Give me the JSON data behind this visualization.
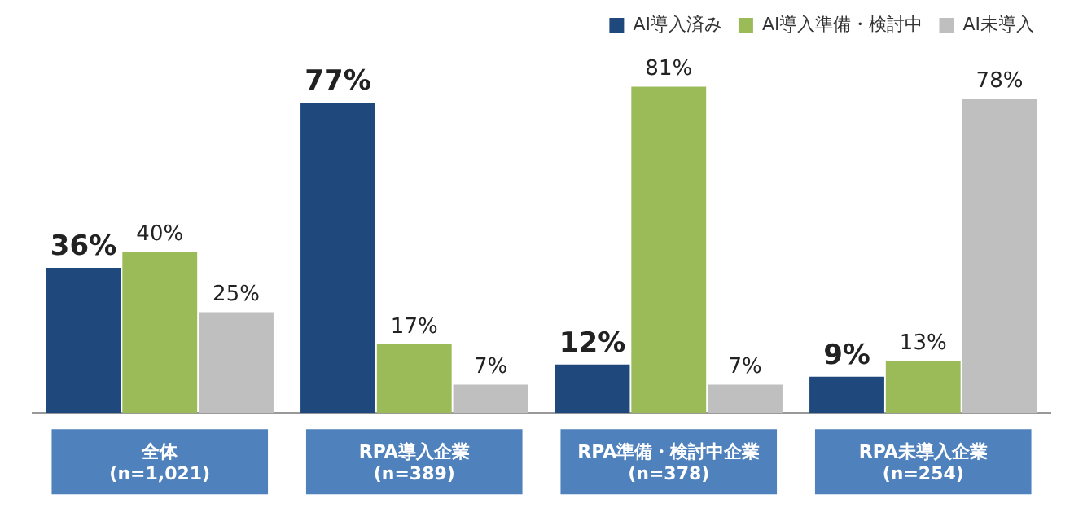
{
  "chart_data": {
    "type": "bar",
    "categories": [
      "全体\n(n=1,021)",
      "RPA導入企業\n(n=389)",
      "RPA準備・検討中企業\n(n=378)",
      "RPA未導入企業\n(n=254)"
    ],
    "series": [
      {
        "name": "AI導入済み",
        "color": "#1f497d",
        "values": [
          36,
          77,
          12,
          9
        ],
        "value_labels": [
          "36%",
          "77%",
          "12%",
          "9%"
        ]
      },
      {
        "name": "AI導入準備・検討中",
        "color": "#9bbb59",
        "values": [
          40,
          17,
          81,
          13
        ],
        "value_labels": [
          "40%",
          "17%",
          "81%",
          "13%"
        ]
      },
      {
        "name": "AI未導入",
        "color": "#bfbfbf",
        "values": [
          25,
          7,
          7,
          78
        ],
        "value_labels": [
          "25%",
          "7%",
          "7%",
          "78%"
        ]
      }
    ],
    "legend": "top right",
    "grid": false
  }
}
